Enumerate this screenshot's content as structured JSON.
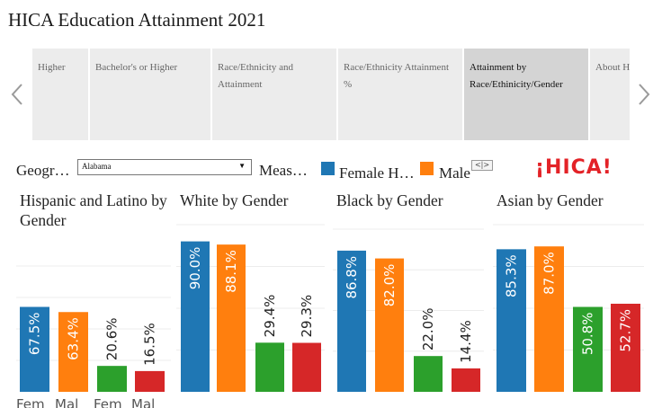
{
  "title": "HICA Education Attainment 2021",
  "tabs": [
    {
      "label": "Higher",
      "active": false
    },
    {
      "label": "Bachelor's or Higher",
      "active": false
    },
    {
      "label": "Race/Ethnicity and Attainment",
      "active": false
    },
    {
      "label": "Race/Ethnicity Attainment %",
      "active": false
    },
    {
      "label": "Attainment by Race/Ethinicity/Gender",
      "active": true
    },
    {
      "label": "About H",
      "active": false
    }
  ],
  "filters": {
    "geography_label": "Geogr…",
    "geography_value": "Alabama",
    "measure_label": "Meas…"
  },
  "legend": [
    {
      "label": "Female H…",
      "color": "#1f77b4"
    },
    {
      "label": "Male",
      "color": "#ff7f0e"
    }
  ],
  "legend_scroll": "<|>",
  "logo": "¡HICA!",
  "colors": {
    "female": "#1f77b4",
    "male": "#ff7f0e",
    "green": "#2ca02c",
    "red": "#d62728"
  },
  "chart_data": [
    {
      "type": "bar",
      "title": "Hispanic and Latino by Gender",
      "categories": [
        "Fem",
        "Mal",
        "Fem",
        "Mal"
      ],
      "values": [
        67.5,
        63.4,
        20.6,
        16.5
      ],
      "labels": [
        "67.5%",
        "63.4%",
        "20.6%",
        "16.5%"
      ],
      "colors": [
        "#1f77b4",
        "#ff7f0e",
        "#2ca02c",
        "#d62728"
      ],
      "ylim": [
        0,
        100
      ]
    },
    {
      "type": "bar",
      "title": "White by Gender",
      "categories": [
        "",
        "",
        "",
        ""
      ],
      "values": [
        90.0,
        88.1,
        29.4,
        29.3
      ],
      "labels": [
        "90.0%",
        "88.1%",
        "29.4%",
        "29.3%"
      ],
      "colors": [
        "#1f77b4",
        "#ff7f0e",
        "#2ca02c",
        "#d62728"
      ],
      "ylim": [
        0,
        100
      ]
    },
    {
      "type": "bar",
      "title": "Black by Gender",
      "categories": [
        "",
        "",
        "",
        ""
      ],
      "values": [
        86.8,
        82.0,
        22.0,
        14.4
      ],
      "labels": [
        "86.8%",
        "82.0%",
        "22.0%",
        "14.4%"
      ],
      "colors": [
        "#1f77b4",
        "#ff7f0e",
        "#2ca02c",
        "#d62728"
      ],
      "ylim": [
        0,
        100
      ]
    },
    {
      "type": "bar",
      "title": "Asian by Gender",
      "categories": [
        "",
        "",
        "",
        ""
      ],
      "values": [
        85.3,
        87.0,
        50.8,
        52.7
      ],
      "labels": [
        "85.3%",
        "87.0%",
        "50.8%",
        "52.7%"
      ],
      "colors": [
        "#1f77b4",
        "#ff7f0e",
        "#2ca02c",
        "#d62728"
      ],
      "ylim": [
        0,
        100
      ]
    }
  ]
}
